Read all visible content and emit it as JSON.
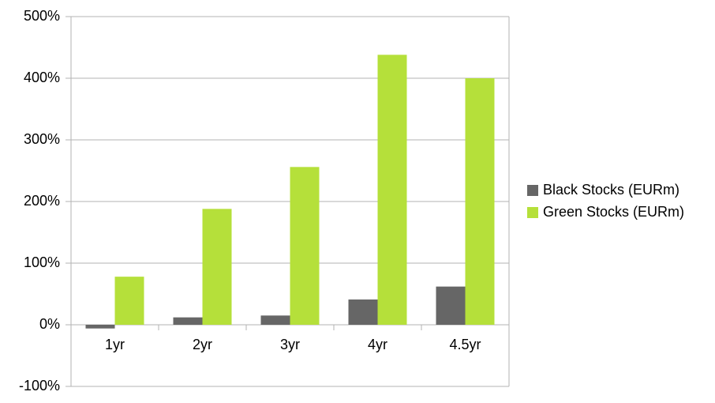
{
  "chart_data": {
    "type": "bar",
    "categories": [
      "1yr",
      "2yr",
      "3yr",
      "4yr",
      "4.5yr"
    ],
    "series": [
      {
        "name": "Black Stocks (EURm)",
        "color": "#666666",
        "values": [
          -6,
          12,
          15,
          41,
          62
        ]
      },
      {
        "name": "Green Stocks (EURm)",
        "color": "#b5e03a",
        "values": [
          78,
          188,
          256,
          438,
          400
        ]
      }
    ],
    "ylim": [
      -100,
      500
    ],
    "yticks": [
      {
        "value": -100,
        "label": "-100%"
      },
      {
        "value": 0,
        "label": "0%"
      },
      {
        "value": 100,
        "label": "100%"
      },
      {
        "value": 200,
        "label": "200%"
      },
      {
        "value": 300,
        "label": "300%"
      },
      {
        "value": 400,
        "label": "400%"
      },
      {
        "value": 500,
        "label": "500%"
      }
    ],
    "grid": true,
    "legend": "right"
  }
}
